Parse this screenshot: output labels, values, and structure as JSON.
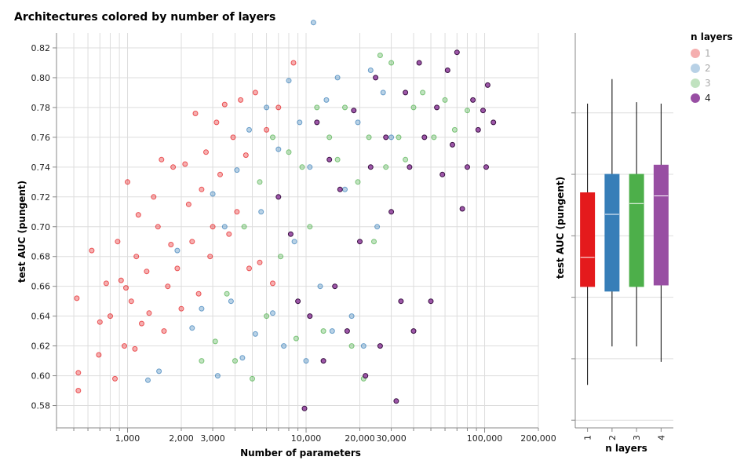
{
  "chart_data": [
    {
      "type": "scatter",
      "title": "Architectures colored by number of layers",
      "xlabel": "Number of parameters",
      "ylabel": "test AUC (pungent)",
      "xscale": "log",
      "xlim": [
        400,
        200000
      ],
      "ylim": [
        0.565,
        0.83
      ],
      "x_tick_labels": [
        {
          "value": 1000,
          "label": "1,000"
        },
        {
          "value": 2000,
          "label": "2,000"
        },
        {
          "value": 3000,
          "label": "3,000"
        },
        {
          "value": 10000,
          "label": "10,000"
        },
        {
          "value": 20000,
          "label": "20,000"
        },
        {
          "value": 30000,
          "label": "30,000"
        },
        {
          "value": 100000,
          "label": "100,000"
        },
        {
          "value": 200000,
          "label": "200,000"
        }
      ],
      "y_ticks": [
        0.58,
        0.6,
        0.62,
        0.64,
        0.66,
        0.68,
        0.7,
        0.72,
        0.74,
        0.76,
        0.78,
        0.8,
        0.82
      ],
      "y_tick_labels": [
        "0.58",
        "0.60",
        "0.62",
        "0.64",
        "0.66",
        "0.68",
        "0.70",
        "0.72",
        "0.74",
        "0.76",
        "0.78",
        "0.80",
        "0.82"
      ],
      "grid": true,
      "series": [
        {
          "name": "1",
          "points": [
            [
              530,
              0.59
            ],
            [
              530,
              0.602
            ],
            [
              520,
              0.652
            ],
            [
              630,
              0.684
            ],
            [
              690,
              0.614
            ],
            [
              700,
              0.636
            ],
            [
              760,
              0.662
            ],
            [
              800,
              0.64
            ],
            [
              850,
              0.598
            ],
            [
              880,
              0.69
            ],
            [
              920,
              0.664
            ],
            [
              960,
              0.62
            ],
            [
              980,
              0.659
            ],
            [
              1000,
              0.73
            ],
            [
              1050,
              0.65
            ],
            [
              1100,
              0.618
            ],
            [
              1120,
              0.68
            ],
            [
              1150,
              0.708
            ],
            [
              1200,
              0.635
            ],
            [
              1280,
              0.67
            ],
            [
              1320,
              0.642
            ],
            [
              1400,
              0.72
            ],
            [
              1480,
              0.7
            ],
            [
              1550,
              0.745
            ],
            [
              1600,
              0.63
            ],
            [
              1680,
              0.66
            ],
            [
              1750,
              0.688
            ],
            [
              1800,
              0.74
            ],
            [
              1900,
              0.672
            ],
            [
              2000,
              0.645
            ],
            [
              2100,
              0.742
            ],
            [
              2200,
              0.715
            ],
            [
              2300,
              0.69
            ],
            [
              2400,
              0.776
            ],
            [
              2500,
              0.655
            ],
            [
              2600,
              0.725
            ],
            [
              2750,
              0.75
            ],
            [
              2900,
              0.68
            ],
            [
              3000,
              0.7
            ],
            [
              3150,
              0.77
            ],
            [
              3300,
              0.735
            ],
            [
              3500,
              0.782
            ],
            [
              3700,
              0.695
            ],
            [
              3900,
              0.76
            ],
            [
              4100,
              0.71
            ],
            [
              4300,
              0.785
            ],
            [
              4600,
              0.748
            ],
            [
              4800,
              0.672
            ],
            [
              5200,
              0.79
            ],
            [
              5500,
              0.676
            ],
            [
              6000,
              0.765
            ],
            [
              6500,
              0.662
            ],
            [
              7000,
              0.78
            ],
            [
              8500,
              0.81
            ]
          ]
        },
        {
          "name": "2",
          "points": [
            [
              1300,
              0.597
            ],
            [
              1500,
              0.603
            ],
            [
              1900,
              0.684
            ],
            [
              2300,
              0.632
            ],
            [
              2600,
              0.645
            ],
            [
              3000,
              0.722
            ],
            [
              3200,
              0.6
            ],
            [
              3500,
              0.7
            ],
            [
              3800,
              0.65
            ],
            [
              4100,
              0.738
            ],
            [
              4400,
              0.612
            ],
            [
              4800,
              0.765
            ],
            [
              5200,
              0.628
            ],
            [
              5600,
              0.71
            ],
            [
              6000,
              0.78
            ],
            [
              6500,
              0.642
            ],
            [
              7000,
              0.752
            ],
            [
              7500,
              0.62
            ],
            [
              8000,
              0.798
            ],
            [
              8600,
              0.69
            ],
            [
              9200,
              0.77
            ],
            [
              10000,
              0.61
            ],
            [
              10500,
              0.74
            ],
            [
              11000,
              0.837
            ],
            [
              12000,
              0.66
            ],
            [
              13000,
              0.785
            ],
            [
              14000,
              0.63
            ],
            [
              15000,
              0.8
            ],
            [
              16500,
              0.725
            ],
            [
              18000,
              0.64
            ],
            [
              19500,
              0.77
            ],
            [
              21000,
              0.62
            ],
            [
              23000,
              0.805
            ],
            [
              25000,
              0.7
            ],
            [
              27000,
              0.79
            ],
            [
              30000,
              0.76
            ]
          ]
        },
        {
          "name": "3",
          "points": [
            [
              2600,
              0.61
            ],
            [
              3100,
              0.623
            ],
            [
              3600,
              0.655
            ],
            [
              4000,
              0.61
            ],
            [
              4500,
              0.7
            ],
            [
              5000,
              0.598
            ],
            [
              5500,
              0.73
            ],
            [
              6000,
              0.64
            ],
            [
              6500,
              0.76
            ],
            [
              7200,
              0.68
            ],
            [
              8000,
              0.75
            ],
            [
              8800,
              0.625
            ],
            [
              9500,
              0.74
            ],
            [
              10500,
              0.7
            ],
            [
              11500,
              0.78
            ],
            [
              12500,
              0.63
            ],
            [
              13500,
              0.76
            ],
            [
              15000,
              0.745
            ],
            [
              16500,
              0.78
            ],
            [
              18000,
              0.62
            ],
            [
              19500,
              0.73
            ],
            [
              21000,
              0.598
            ],
            [
              22500,
              0.76
            ],
            [
              24000,
              0.69
            ],
            [
              26000,
              0.815
            ],
            [
              28000,
              0.74
            ],
            [
              30000,
              0.81
            ],
            [
              33000,
              0.76
            ],
            [
              36000,
              0.745
            ],
            [
              40000,
              0.78
            ],
            [
              45000,
              0.79
            ],
            [
              52000,
              0.76
            ],
            [
              60000,
              0.785
            ],
            [
              68000,
              0.765
            ],
            [
              80000,
              0.778
            ]
          ]
        },
        {
          "name": "4",
          "points": [
            [
              7000,
              0.72
            ],
            [
              8200,
              0.695
            ],
            [
              9000,
              0.65
            ],
            [
              9800,
              0.578
            ],
            [
              10500,
              0.64
            ],
            [
              11500,
              0.77
            ],
            [
              12500,
              0.61
            ],
            [
              13500,
              0.745
            ],
            [
              14500,
              0.66
            ],
            [
              15500,
              0.725
            ],
            [
              17000,
              0.63
            ],
            [
              18500,
              0.778
            ],
            [
              20000,
              0.69
            ],
            [
              21500,
              0.6
            ],
            [
              23000,
              0.74
            ],
            [
              24500,
              0.8
            ],
            [
              26000,
              0.62
            ],
            [
              28000,
              0.76
            ],
            [
              30000,
              0.71
            ],
            [
              32000,
              0.583
            ],
            [
              34000,
              0.65
            ],
            [
              36000,
              0.79
            ],
            [
              38000,
              0.74
            ],
            [
              40000,
              0.63
            ],
            [
              43000,
              0.81
            ],
            [
              46000,
              0.76
            ],
            [
              50000,
              0.65
            ],
            [
              54000,
              0.78
            ],
            [
              58000,
              0.735
            ],
            [
              62000,
              0.805
            ],
            [
              66000,
              0.755
            ],
            [
              70000,
              0.817
            ],
            [
              75000,
              0.712
            ],
            [
              80000,
              0.74
            ],
            [
              86000,
              0.785
            ],
            [
              92000,
              0.765
            ],
            [
              98000,
              0.778
            ],
            [
              102000,
              0.74
            ],
            [
              104000,
              0.795
            ],
            [
              112000,
              0.77
            ]
          ]
        }
      ]
    },
    {
      "type": "boxplot",
      "xlabel": "n layers",
      "ylabel": "test AUC (pungent)",
      "categories": [
        "1",
        "2",
        "3",
        "4"
      ],
      "colors": [
        "#e41a1c",
        "#377eb8",
        "#4daf4a",
        "#984ea3"
      ],
      "stats": [
        {
          "min": 0.603,
          "q1": 0.667,
          "median": 0.686,
          "q3": 0.728,
          "max": 0.786
        },
        {
          "min": 0.628,
          "q1": 0.664,
          "median": 0.714,
          "q3": 0.74,
          "max": 0.802
        },
        {
          "min": 0.628,
          "q1": 0.667,
          "median": 0.721,
          "q3": 0.74,
          "max": 0.787
        },
        {
          "min": 0.618,
          "q1": 0.668,
          "median": 0.726,
          "q3": 0.746,
          "max": 0.786
        }
      ],
      "ylim": [
        0.575,
        0.832
      ]
    }
  ],
  "legend": {
    "title": "n layers",
    "items": [
      {
        "label": "1",
        "color": "#e41a1c",
        "active": false
      },
      {
        "label": "2",
        "color": "#377eb8",
        "active": false
      },
      {
        "label": "3",
        "color": "#4daf4a",
        "active": false
      },
      {
        "label": "4",
        "color": "#984ea3",
        "active": true
      }
    ]
  },
  "colors": {
    "1": "#e41a1c",
    "2": "#377eb8",
    "3": "#4daf4a",
    "4": "#984ea3",
    "grid": "#dddddd",
    "axis": "#888888"
  }
}
